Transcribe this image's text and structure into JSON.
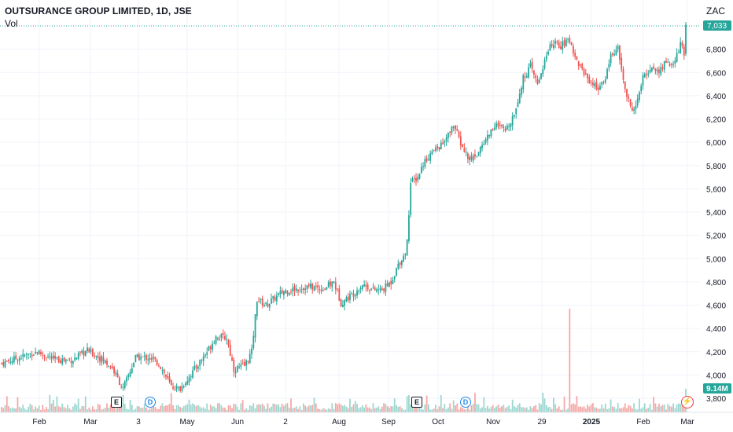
{
  "header": {
    "title": "OUTSURANCE GROUP LIMITED, 1D, JSE",
    "volume_label": "Vol",
    "currency": "ZAC"
  },
  "markers": {
    "earnings_label": "E",
    "dividend_label": "D"
  },
  "colors": {
    "up": "#26a69a",
    "down": "#ef5350",
    "up_volume": "#9fd7d0",
    "down_volume": "#f4a9a7",
    "grid": "#f0f3fa",
    "last_price_line": "#26a69a"
  },
  "chart_data": {
    "type": "candlestick",
    "symbol": "OUTSURANCE GROUP LIMITED",
    "interval": "1D",
    "exchange": "JSE",
    "currency": "ZAC",
    "y_ticks": [
      3800,
      4000,
      4200,
      4400,
      4600,
      4800,
      5000,
      5200,
      5400,
      5600,
      5800,
      6000,
      6200,
      6400,
      6600,
      6800
    ],
    "y_tick_labels": [
      "3,800",
      "4,000",
      "4,200",
      "4,400",
      "4,600",
      "4,800",
      "5,000",
      "5,200",
      "5,400",
      "5,600",
      "5,800",
      "6,000",
      "6,200",
      "6,400",
      "6,600",
      "6,800"
    ],
    "ylim": [
      3730,
      7030
    ],
    "x_tick_labels": [
      "Feb",
      "Mar",
      "3",
      "May",
      "Jun",
      "2",
      "Aug",
      "Sep",
      "Oct",
      "Nov",
      "29",
      "2025",
      "Feb",
      "Mar"
    ],
    "price_path": [
      {
        "i": 0,
        "p": 4100
      },
      {
        "i": 10,
        "p": 4150
      },
      {
        "i": 20,
        "p": 4200
      },
      {
        "i": 30,
        "p": 4130
      },
      {
        "i": 40,
        "p": 4130
      },
      {
        "i": 48,
        "p": 4210
      },
      {
        "i": 55,
        "p": 4150
      },
      {
        "i": 62,
        "p": 4060
      },
      {
        "i": 68,
        "p": 3880
      },
      {
        "i": 75,
        "p": 4150
      },
      {
        "i": 82,
        "p": 4150
      },
      {
        "i": 88,
        "p": 4100
      },
      {
        "i": 95,
        "p": 3900
      },
      {
        "i": 100,
        "p": 3880
      },
      {
        "i": 108,
        "p": 4050
      },
      {
        "i": 115,
        "p": 4200
      },
      {
        "i": 120,
        "p": 4330
      },
      {
        "i": 126,
        "p": 4320
      },
      {
        "i": 130,
        "p": 4050
      },
      {
        "i": 136,
        "p": 4080
      },
      {
        "i": 140,
        "p": 4200
      },
      {
        "i": 143,
        "p": 4650
      },
      {
        "i": 148,
        "p": 4600
      },
      {
        "i": 152,
        "p": 4650
      },
      {
        "i": 158,
        "p": 4720
      },
      {
        "i": 165,
        "p": 4740
      },
      {
        "i": 172,
        "p": 4760
      },
      {
        "i": 180,
        "p": 4740
      },
      {
        "i": 186,
        "p": 4800
      },
      {
        "i": 190,
        "p": 4620
      },
      {
        "i": 197,
        "p": 4700
      },
      {
        "i": 202,
        "p": 4780
      },
      {
        "i": 208,
        "p": 4730
      },
      {
        "i": 213,
        "p": 4730
      },
      {
        "i": 218,
        "p": 4800
      },
      {
        "i": 222,
        "p": 4950
      },
      {
        "i": 226,
        "p": 5050
      },
      {
        "i": 227,
        "p": 5150
      },
      {
        "i": 229,
        "p": 5650
      },
      {
        "i": 233,
        "p": 5700
      },
      {
        "i": 236,
        "p": 5820
      },
      {
        "i": 240,
        "p": 5900
      },
      {
        "i": 244,
        "p": 5950
      },
      {
        "i": 248,
        "p": 6000
      },
      {
        "i": 253,
        "p": 6150
      },
      {
        "i": 258,
        "p": 5950
      },
      {
        "i": 262,
        "p": 5850
      },
      {
        "i": 266,
        "p": 5900
      },
      {
        "i": 270,
        "p": 6000
      },
      {
        "i": 276,
        "p": 6150
      },
      {
        "i": 282,
        "p": 6100
      },
      {
        "i": 287,
        "p": 6250
      },
      {
        "i": 292,
        "p": 6550
      },
      {
        "i": 296,
        "p": 6650
      },
      {
        "i": 300,
        "p": 6500
      },
      {
        "i": 304,
        "p": 6700
      },
      {
        "i": 308,
        "p": 6850
      },
      {
        "i": 313,
        "p": 6830
      },
      {
        "i": 318,
        "p": 6880
      },
      {
        "i": 322,
        "p": 6700
      },
      {
        "i": 328,
        "p": 6550
      },
      {
        "i": 333,
        "p": 6470
      },
      {
        "i": 337,
        "p": 6500
      },
      {
        "i": 341,
        "p": 6750
      },
      {
        "i": 345,
        "p": 6800
      },
      {
        "i": 349,
        "p": 6450
      },
      {
        "i": 352,
        "p": 6300
      },
      {
        "i": 355,
        "p": 6300
      },
      {
        "i": 359,
        "p": 6550
      },
      {
        "i": 364,
        "p": 6650
      },
      {
        "i": 368,
        "p": 6600
      },
      {
        "i": 372,
        "p": 6700
      },
      {
        "i": 376,
        "p": 6650
      },
      {
        "i": 380,
        "p": 6850
      },
      {
        "i": 382,
        "p": 6750
      },
      {
        "i": 383,
        "p": 7000
      }
    ],
    "volume_spike": "9.14M",
    "last_price": "7,033",
    "last_volume": "9.14M"
  },
  "price_badge": "7,033",
  "volume_badge": "9.14M"
}
